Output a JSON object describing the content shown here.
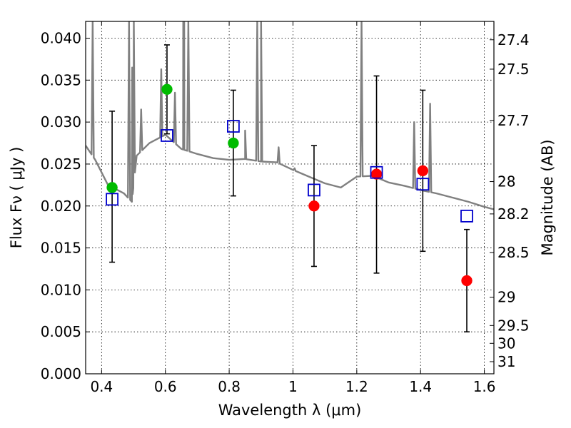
{
  "chart_data": {
    "type": "scatter",
    "title": "",
    "xlabel": "Wavelength  λ (μm)",
    "ylabel": "Flux  Fν  ( μJy )",
    "y2label": "Magnitude (AB)",
    "xlim": [
      0.35,
      1.63
    ],
    "ylim": [
      0.0,
      0.042
    ],
    "grid": true,
    "legend": "none",
    "xticks": [
      {
        "value": 0.4,
        "label": "0.4"
      },
      {
        "value": 0.6,
        "label": "0.6"
      },
      {
        "value": 0.8,
        "label": "0.8"
      },
      {
        "value": 1.0,
        "label": "1"
      },
      {
        "value": 1.2,
        "label": "1.2"
      },
      {
        "value": 1.4,
        "label": "1.4"
      },
      {
        "value": 1.6,
        "label": "1.6"
      }
    ],
    "yticks": [
      {
        "value": 0.0,
        "label": "0.000"
      },
      {
        "value": 0.005,
        "label": "0.005"
      },
      {
        "value": 0.01,
        "label": "0.010"
      },
      {
        "value": 0.015,
        "label": "0.015"
      },
      {
        "value": 0.02,
        "label": "0.020"
      },
      {
        "value": 0.025,
        "label": "0.025"
      },
      {
        "value": 0.03,
        "label": "0.030"
      },
      {
        "value": 0.035,
        "label": "0.035"
      },
      {
        "value": 0.04,
        "label": "0.040"
      }
    ],
    "y2ticks": [
      {
        "mag": 27.4,
        "label": "27.4"
      },
      {
        "mag": 27.5,
        "label": "27.5"
      },
      {
        "mag": 27.7,
        "label": "27.7"
      },
      {
        "mag": 28.0,
        "label": "28"
      },
      {
        "mag": 28.2,
        "label": "28.2"
      },
      {
        "mag": 28.5,
        "label": "28.5"
      },
      {
        "mag": 29.0,
        "label": "29"
      },
      {
        "mag": 29.5,
        "label": "29.5"
      },
      {
        "mag": 30.0,
        "label": "30"
      },
      {
        "mag": 31.0,
        "label": "31"
      }
    ],
    "series": [
      {
        "kind": "model-spectrum",
        "color": "#808080",
        "continuum": [
          [
            0.35,
            0.0272
          ],
          [
            0.38,
            0.0255
          ],
          [
            0.42,
            0.0225
          ],
          [
            0.47,
            0.0215
          ],
          [
            0.495,
            0.0205
          ],
          [
            0.51,
            0.026
          ],
          [
            0.55,
            0.0275
          ],
          [
            0.6,
            0.0285
          ],
          [
            0.65,
            0.0268
          ],
          [
            0.7,
            0.0262
          ],
          [
            0.75,
            0.0257
          ],
          [
            0.8,
            0.0255
          ],
          [
            0.85,
            0.0256
          ],
          [
            0.9,
            0.0253
          ],
          [
            0.95,
            0.0252
          ],
          [
            1.0,
            0.0243
          ],
          [
            1.05,
            0.0235
          ],
          [
            1.1,
            0.0227
          ],
          [
            1.15,
            0.0222
          ],
          [
            1.2,
            0.0235
          ],
          [
            1.25,
            0.0236
          ],
          [
            1.3,
            0.0228
          ],
          [
            1.35,
            0.0224
          ],
          [
            1.4,
            0.0219
          ],
          [
            1.45,
            0.0215
          ],
          [
            1.5,
            0.021
          ],
          [
            1.55,
            0.0205
          ],
          [
            1.6,
            0.0199
          ],
          [
            1.63,
            0.0196
          ]
        ],
        "emission_lines": [
          [
            0.372,
            0.042
          ],
          [
            0.434,
            0.0225
          ],
          [
            0.486,
            0.042
          ],
          [
            0.496,
            0.0365
          ],
          [
            0.501,
            0.042
          ],
          [
            0.524,
            0.0315
          ],
          [
            0.587,
            0.0363
          ],
          [
            0.63,
            0.0335
          ],
          [
            0.656,
            0.042
          ],
          [
            0.659,
            0.042
          ],
          [
            0.672,
            0.042
          ],
          [
            0.85,
            0.029
          ],
          [
            0.888,
            0.042
          ],
          [
            0.9,
            0.042
          ],
          [
            0.955,
            0.027
          ],
          [
            1.005,
            0.0245
          ],
          [
            1.215,
            0.042
          ],
          [
            1.281,
            0.0215
          ],
          [
            1.38,
            0.03
          ],
          [
            1.43,
            0.0322
          ]
        ]
      },
      {
        "name": "green points",
        "color": "#00bb00",
        "x": [
          0.433,
          0.605,
          0.813
        ],
        "y": [
          0.0222,
          0.0339,
          0.0275
        ]
      },
      {
        "name": "red points",
        "color": "#ff0000",
        "x": [
          1.066,
          1.262,
          1.407,
          1.545
        ],
        "y": [
          0.02,
          0.0238,
          0.0242,
          0.0111
        ]
      },
      {
        "name": "error bars",
        "color": "#000000",
        "x": [
          0.433,
          0.605,
          0.813,
          1.066,
          1.262,
          1.407,
          1.545
        ],
        "low": [
          0.0133,
          0.0286,
          0.0212,
          0.0128,
          0.012,
          0.0146,
          0.005
        ],
        "high": [
          0.0313,
          0.0392,
          0.0338,
          0.0272,
          0.0355,
          0.0338,
          0.0172
        ]
      },
      {
        "name": "open squares",
        "color": "#0000cc",
        "x": [
          0.433,
          0.605,
          0.813,
          1.066,
          1.262,
          1.407,
          1.545
        ],
        "y": [
          0.0208,
          0.0284,
          0.0295,
          0.0219,
          0.024,
          0.0226,
          0.0188
        ]
      }
    ]
  }
}
